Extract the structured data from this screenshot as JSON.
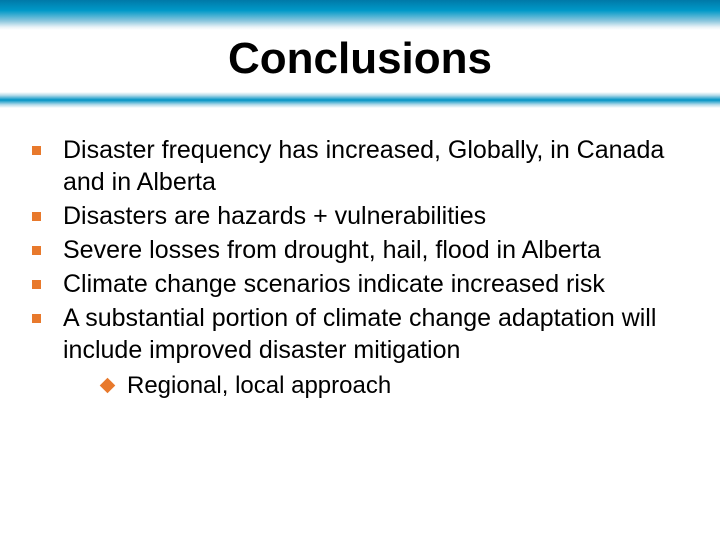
{
  "slide": {
    "title": "Conclusions",
    "top_band_gradient": [
      "#0079a8",
      "#0099c8",
      "#8cc7de",
      "#e8f2f7",
      "#ffffff"
    ],
    "divider_gradient": [
      "#ffffff",
      "#b7dcea",
      "#0093c4",
      "#b7dcea",
      "#ffffff"
    ],
    "title_color": "#000000",
    "title_fontsize": 44,
    "body_fontsize": 25,
    "sub_fontsize": 24,
    "bullet_color": "#e8792c",
    "text_color": "#000000",
    "background_color": "#ffffff",
    "bullets": [
      {
        "text": "Disaster frequency has increased, Globally, in Canada and in Alberta"
      },
      {
        "text": "Disasters are hazards + vulnerabilities"
      },
      {
        "text": "Severe losses from drought, hail, flood in Alberta"
      },
      {
        "text": "Climate change scenarios indicate increased risk"
      },
      {
        "text": "A substantial portion of climate change adaptation will include improved disaster mitigation"
      }
    ],
    "sub_bullets": [
      {
        "text": "Regional, local approach"
      }
    ]
  }
}
